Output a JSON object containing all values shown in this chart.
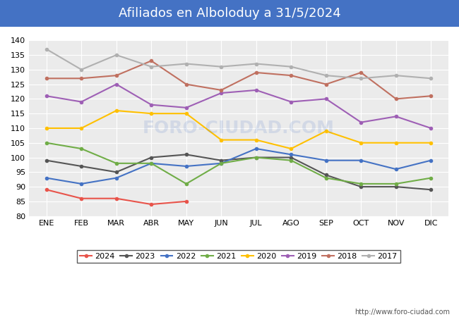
{
  "title": "Afiliados en Alboloduy a 31/5/2024",
  "title_color": "#ffffff",
  "title_bg_color": "#4472c4",
  "xlabel": "",
  "ylabel": "",
  "ylim": [
    80,
    140
  ],
  "yticks": [
    80,
    85,
    90,
    95,
    100,
    105,
    110,
    115,
    120,
    125,
    130,
    135,
    140
  ],
  "months": [
    "ENE",
    "FEB",
    "MAR",
    "ABR",
    "MAY",
    "JUN",
    "JUL",
    "AGO",
    "SEP",
    "OCT",
    "NOV",
    "DIC"
  ],
  "series": {
    "2024": {
      "color": "#e8534a",
      "data": [
        89,
        86,
        86,
        84,
        85,
        null,
        null,
        null,
        null,
        null,
        null,
        null
      ]
    },
    "2023": {
      "color": "#555555",
      "data": [
        99,
        97,
        95,
        100,
        101,
        99,
        100,
        100,
        94,
        90,
        90,
        89
      ]
    },
    "2022": {
      "color": "#4472c4",
      "data": [
        93,
        91,
        93,
        98,
        97,
        98,
        103,
        101,
        99,
        99,
        96,
        99
      ]
    },
    "2021": {
      "color": "#70ad47",
      "data": [
        105,
        103,
        98,
        98,
        91,
        98,
        100,
        99,
        93,
        91,
        91,
        93
      ]
    },
    "2020": {
      "color": "#ffc000",
      "data": [
        110,
        110,
        116,
        115,
        115,
        106,
        106,
        103,
        109,
        105,
        105,
        105
      ]
    },
    "2019": {
      "color": "#9e5fb5",
      "data": [
        121,
        119,
        125,
        118,
        117,
        122,
        123,
        119,
        120,
        112,
        114,
        110
      ]
    },
    "2018": {
      "color": "#c07060",
      "data": [
        127,
        127,
        128,
        133,
        125,
        123,
        129,
        128,
        125,
        129,
        120,
        121
      ]
    },
    "2017": {
      "color": "#b0b0b0",
      "data": [
        137,
        130,
        135,
        131,
        132,
        131,
        132,
        131,
        128,
        127,
        128,
        127
      ]
    }
  },
  "watermark": "FORO-CIUDAD.COM",
  "url": "http://www.foro-ciudad.com",
  "background_color": "#ffffff",
  "plot_bg_color": "#ebebeb",
  "grid_color": "#ffffff"
}
